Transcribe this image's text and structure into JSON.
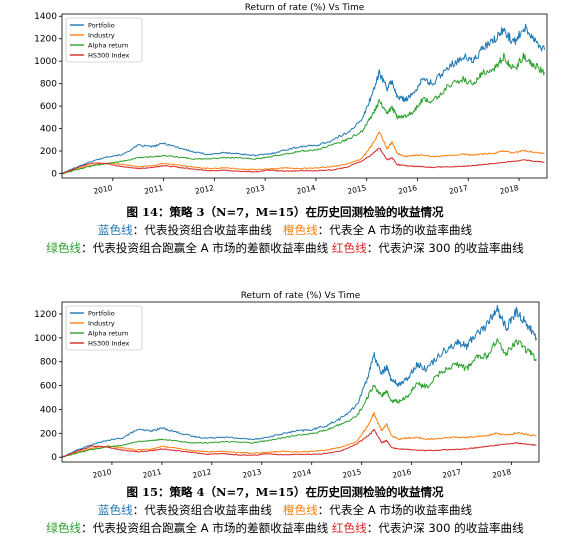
{
  "colors": {
    "portfolio": "#1f77b4",
    "industry": "#ff7f0e",
    "alpha": "#2ca02c",
    "hs300": "#d62728"
  },
  "chart_data": [
    {
      "type": "line",
      "title": "Return of rate (%) Vs Time",
      "xlabel": "",
      "ylabel": "",
      "xlim": [
        2009.0,
        2018.55
      ],
      "ylim": [
        -40,
        1420
      ],
      "yticks": [
        0,
        200,
        400,
        600,
        800,
        1000,
        1200,
        1400
      ],
      "xticks": [
        2010,
        2011,
        2012,
        2013,
        2014,
        2015,
        2016,
        2017,
        2018
      ],
      "legend": "top-left",
      "grid": false,
      "series": [
        {
          "name": "Portfolio",
          "x": [
            2009.0,
            2009.3,
            2009.6,
            2009.9,
            2010.2,
            2010.5,
            2010.8,
            2011.0,
            2011.3,
            2011.6,
            2011.9,
            2012.2,
            2012.5,
            2012.8,
            2013.1,
            2013.4,
            2013.7,
            2014.0,
            2014.3,
            2014.6,
            2014.9,
            2015.1,
            2015.25,
            2015.4,
            2015.5,
            2015.6,
            2015.75,
            2015.9,
            2016.1,
            2016.3,
            2016.6,
            2016.9,
            2017.1,
            2017.3,
            2017.5,
            2017.7,
            2017.9,
            2018.1,
            2018.3,
            2018.5
          ],
          "y": [
            0,
            60,
            110,
            150,
            170,
            250,
            240,
            270,
            230,
            190,
            170,
            185,
            175,
            160,
            175,
            210,
            240,
            250,
            290,
            360,
            470,
            700,
            900,
            760,
            820,
            680,
            660,
            700,
            840,
            800,
            950,
            1040,
            1000,
            1120,
            1180,
            1280,
            1160,
            1310,
            1200,
            1100
          ]
        },
        {
          "name": "Industry",
          "x": [
            2009.0,
            2009.3,
            2009.6,
            2009.9,
            2010.2,
            2010.5,
            2010.8,
            2011.0,
            2011.3,
            2011.6,
            2011.9,
            2012.2,
            2012.5,
            2012.8,
            2013.1,
            2013.4,
            2013.7,
            2014.0,
            2014.3,
            2014.6,
            2014.9,
            2015.1,
            2015.25,
            2015.4,
            2015.5,
            2015.6,
            2015.75,
            2015.9,
            2016.1,
            2016.3,
            2016.6,
            2016.9,
            2017.1,
            2017.3,
            2017.5,
            2017.7,
            2017.9,
            2018.1,
            2018.3,
            2018.5
          ],
          "y": [
            0,
            40,
            75,
            95,
            80,
            60,
            70,
            90,
            75,
            55,
            45,
            50,
            40,
            35,
            40,
            50,
            45,
            50,
            60,
            85,
            130,
            250,
            370,
            220,
            280,
            180,
            150,
            160,
            165,
            150,
            160,
            170,
            165,
            175,
            180,
            200,
            185,
            205,
            190,
            180
          ]
        },
        {
          "name": "Alpha return",
          "x": [
            2009.0,
            2009.3,
            2009.6,
            2009.9,
            2010.2,
            2010.5,
            2010.8,
            2011.0,
            2011.3,
            2011.6,
            2011.9,
            2012.2,
            2012.5,
            2012.8,
            2013.1,
            2013.4,
            2013.7,
            2014.0,
            2014.3,
            2014.6,
            2014.9,
            2015.1,
            2015.25,
            2015.4,
            2015.5,
            2015.6,
            2015.75,
            2015.9,
            2016.1,
            2016.3,
            2016.6,
            2016.9,
            2017.1,
            2017.3,
            2017.5,
            2017.7,
            2017.9,
            2018.1,
            2018.3,
            2018.5
          ],
          "y": [
            0,
            35,
            70,
            90,
            110,
            140,
            150,
            160,
            145,
            130,
            130,
            140,
            140,
            130,
            150,
            175,
            200,
            210,
            250,
            300,
            370,
            520,
            640,
            540,
            590,
            500,
            510,
            540,
            660,
            640,
            780,
            840,
            800,
            900,
            920,
            1040,
            920,
            1050,
            960,
            900
          ]
        },
        {
          "name": "HS300 Index",
          "x": [
            2009.0,
            2009.3,
            2009.6,
            2009.9,
            2010.2,
            2010.5,
            2010.8,
            2011.0,
            2011.3,
            2011.6,
            2011.9,
            2012.2,
            2012.5,
            2012.8,
            2013.1,
            2013.4,
            2013.7,
            2014.0,
            2014.3,
            2014.6,
            2014.9,
            2015.1,
            2015.25,
            2015.4,
            2015.5,
            2015.6,
            2015.75,
            2015.9,
            2016.1,
            2016.3,
            2016.6,
            2016.9,
            2017.1,
            2017.3,
            2017.5,
            2017.7,
            2017.9,
            2018.1,
            2018.3,
            2018.5
          ],
          "y": [
            0,
            50,
            95,
            85,
            60,
            45,
            55,
            70,
            55,
            40,
            25,
            30,
            20,
            15,
            30,
            20,
            25,
            25,
            30,
            55,
            110,
            170,
            230,
            120,
            140,
            80,
            70,
            65,
            60,
            55,
            60,
            65,
            70,
            80,
            90,
            100,
            110,
            120,
            110,
            100
          ]
        }
      ]
    },
    {
      "type": "line",
      "title": "Return of rate (%) Vs Time",
      "xlabel": "",
      "ylabel": "",
      "xlim": [
        2009.0,
        2018.55
      ],
      "ylim": [
        -40,
        1300
      ],
      "yticks": [
        0,
        200,
        400,
        600,
        800,
        1000,
        1200
      ],
      "xticks": [
        2010,
        2011,
        2012,
        2013,
        2014,
        2015,
        2016,
        2017,
        2018
      ],
      "legend": "top-left",
      "grid": false,
      "series": [
        {
          "name": "Portfolio",
          "x": [
            2009.0,
            2009.3,
            2009.6,
            2009.9,
            2010.2,
            2010.5,
            2010.8,
            2011.0,
            2011.3,
            2011.6,
            2011.9,
            2012.2,
            2012.5,
            2012.8,
            2013.1,
            2013.4,
            2013.7,
            2014.0,
            2014.3,
            2014.6,
            2014.9,
            2015.1,
            2015.25,
            2015.4,
            2015.5,
            2015.6,
            2015.75,
            2015.9,
            2016.1,
            2016.3,
            2016.6,
            2016.9,
            2017.1,
            2017.3,
            2017.5,
            2017.7,
            2017.9,
            2018.1,
            2018.3,
            2018.5
          ],
          "y": [
            0,
            60,
            105,
            140,
            160,
            230,
            220,
            245,
            210,
            175,
            160,
            170,
            160,
            150,
            165,
            195,
            220,
            230,
            265,
            330,
            430,
            650,
            850,
            700,
            760,
            640,
            610,
            650,
            780,
            740,
            880,
            960,
            930,
            1040,
            1100,
            1250,
            1080,
            1220,
            1120,
            1000
          ]
        },
        {
          "name": "Industry",
          "x": [
            2009.0,
            2009.3,
            2009.6,
            2009.9,
            2010.2,
            2010.5,
            2010.8,
            2011.0,
            2011.3,
            2011.6,
            2011.9,
            2012.2,
            2012.5,
            2012.8,
            2013.1,
            2013.4,
            2013.7,
            2014.0,
            2014.3,
            2014.6,
            2014.9,
            2015.1,
            2015.25,
            2015.4,
            2015.5,
            2015.6,
            2015.75,
            2015.9,
            2016.1,
            2016.3,
            2016.6,
            2016.9,
            2017.1,
            2017.3,
            2017.5,
            2017.7,
            2017.9,
            2018.1,
            2018.3,
            2018.5
          ],
          "y": [
            0,
            40,
            75,
            95,
            80,
            60,
            70,
            90,
            75,
            55,
            45,
            50,
            40,
            35,
            40,
            50,
            45,
            50,
            60,
            85,
            130,
            250,
            370,
            220,
            280,
            180,
            150,
            160,
            165,
            150,
            160,
            170,
            165,
            175,
            180,
            200,
            185,
            205,
            190,
            180
          ]
        },
        {
          "name": "Alpha return",
          "x": [
            2009.0,
            2009.3,
            2009.6,
            2009.9,
            2010.2,
            2010.5,
            2010.8,
            2011.0,
            2011.3,
            2011.6,
            2011.9,
            2012.2,
            2012.5,
            2012.8,
            2013.1,
            2013.4,
            2013.7,
            2014.0,
            2014.3,
            2014.6,
            2014.9,
            2015.1,
            2015.25,
            2015.4,
            2015.5,
            2015.6,
            2015.75,
            2015.9,
            2016.1,
            2016.3,
            2016.6,
            2016.9,
            2017.1,
            2017.3,
            2017.5,
            2017.7,
            2017.9,
            2018.1,
            2018.3,
            2018.5
          ],
          "y": [
            0,
            35,
            65,
            85,
            100,
            130,
            140,
            150,
            135,
            120,
            120,
            130,
            130,
            120,
            140,
            160,
            185,
            195,
            230,
            280,
            340,
            490,
            600,
            510,
            550,
            470,
            470,
            500,
            610,
            590,
            720,
            780,
            740,
            830,
            850,
            970,
            860,
            980,
            900,
            820
          ]
        },
        {
          "name": "HS300 Index",
          "x": [
            2009.0,
            2009.3,
            2009.6,
            2009.9,
            2010.2,
            2010.5,
            2010.8,
            2011.0,
            2011.3,
            2011.6,
            2011.9,
            2012.2,
            2012.5,
            2012.8,
            2013.1,
            2013.4,
            2013.7,
            2014.0,
            2014.3,
            2014.6,
            2014.9,
            2015.1,
            2015.25,
            2015.4,
            2015.5,
            2015.6,
            2015.75,
            2015.9,
            2016.1,
            2016.3,
            2016.6,
            2016.9,
            2017.1,
            2017.3,
            2017.5,
            2017.7,
            2017.9,
            2018.1,
            2018.3,
            2018.5
          ],
          "y": [
            0,
            50,
            95,
            85,
            60,
            45,
            55,
            70,
            55,
            40,
            25,
            30,
            20,
            15,
            30,
            20,
            25,
            25,
            30,
            55,
            110,
            170,
            230,
            120,
            140,
            80,
            70,
            65,
            60,
            55,
            60,
            65,
            70,
            80,
            90,
            100,
            110,
            120,
            110,
            100
          ]
        }
      ]
    }
  ],
  "captions": [
    {
      "title": "图 14：策略 3（N=7，M=15）在历史回测检验的收益情况",
      "blue_label": "蓝色线",
      "blue_text": "：代表投资组合收益率曲线",
      "orange_label": "橙色线",
      "orange_text": "：代表全 A 市场的收益率曲线",
      "green_label": "绿色线",
      "green_text": "：代表投资组合跑赢全 A 市场的差额收益率曲线",
      "red_label": "红色线",
      "red_text": "：代表沪深 300 的收益率曲线"
    },
    {
      "title": "图 15：策略 4（N=7，M=15）在历史回测检验的收益情况",
      "blue_label": "蓝色线",
      "blue_text": "：代表投资组合收益率曲线",
      "orange_label": "橙色线",
      "orange_text": "：代表全 A 市场的收益率曲线",
      "green_label": "绿色线",
      "green_text": "：代表投资组合跑赢全 A 市场的差额收益率曲线",
      "red_label": "红色线",
      "red_text": "：代表沪深 300 的收益率曲线"
    }
  ]
}
